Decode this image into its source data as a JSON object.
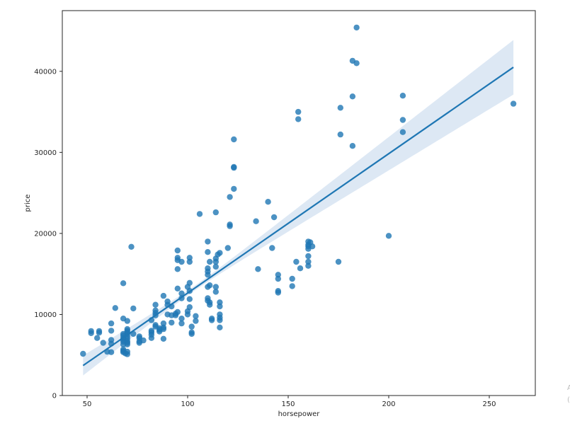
{
  "chart_data": {
    "type": "scatter",
    "title": "",
    "xlabel": "horsepower",
    "ylabel": "price",
    "xlim": [
      37.5,
      272.5
    ],
    "ylim": [
      0,
      47500
    ],
    "xticks": [
      50,
      100,
      150,
      200,
      250
    ],
    "yticks": [
      0,
      10000,
      20000,
      30000,
      40000
    ],
    "xtick_labels": [
      "50",
      "100",
      "150",
      "200",
      "250"
    ],
    "ytick_labels": [
      "0",
      "10000",
      "20000",
      "30000",
      "40000"
    ],
    "grid": false,
    "legend": null,
    "point_color": "#1f77b4",
    "line_color": "#1f77b4",
    "ci_band_color": "#c6d9ec",
    "regression": {
      "x_range": [
        48,
        262
      ],
      "y_at_start": 3700,
      "y_at_end": 40500,
      "ci_lower": [
        2700,
        36000
      ],
      "ci_upper": [
        4600,
        45000
      ]
    },
    "points": [
      [
        48,
        5150
      ],
      [
        52,
        7950
      ],
      [
        52,
        7700
      ],
      [
        55,
        7100
      ],
      [
        56,
        7950
      ],
      [
        56,
        7750
      ],
      [
        58,
        6500
      ],
      [
        60,
        5400
      ],
      [
        62,
        8900
      ],
      [
        62,
        8000
      ],
      [
        62,
        6850
      ],
      [
        62,
        6400
      ],
      [
        62,
        5350
      ],
      [
        64,
        10800
      ],
      [
        68,
        13850
      ],
      [
        68,
        9500
      ],
      [
        68,
        7600
      ],
      [
        68,
        7400
      ],
      [
        68,
        7100
      ],
      [
        68,
        6900
      ],
      [
        68,
        6650
      ],
      [
        68,
        6300
      ],
      [
        68,
        5700
      ],
      [
        68,
        5500
      ],
      [
        68,
        5350
      ],
      [
        69,
        5200
      ],
      [
        70,
        9200
      ],
      [
        70,
        8200
      ],
      [
        70,
        8000
      ],
      [
        70,
        7800
      ],
      [
        70,
        7600
      ],
      [
        70,
        7300
      ],
      [
        70,
        7000
      ],
      [
        70,
        6700
      ],
      [
        70,
        6500
      ],
      [
        70,
        6300
      ],
      [
        70,
        5100
      ],
      [
        70,
        5400
      ],
      [
        72,
        18350
      ],
      [
        73,
        10750
      ],
      [
        73,
        7600
      ],
      [
        76,
        7300
      ],
      [
        76,
        7100
      ],
      [
        76,
        6700
      ],
      [
        76,
        6500
      ],
      [
        78,
        6800
      ],
      [
        82,
        9300
      ],
      [
        82,
        8000
      ],
      [
        82,
        7800
      ],
      [
        82,
        7500
      ],
      [
        82,
        7100
      ],
      [
        84,
        11200
      ],
      [
        84,
        10500
      ],
      [
        84,
        10200
      ],
      [
        84,
        9900
      ],
      [
        84,
        8700
      ],
      [
        84,
        8500
      ],
      [
        86,
        8300
      ],
      [
        86,
        8100
      ],
      [
        86,
        7900
      ],
      [
        88,
        12300
      ],
      [
        88,
        8900
      ],
      [
        88,
        8400
      ],
      [
        88,
        8200
      ],
      [
        88,
        7000
      ],
      [
        90,
        11600
      ],
      [
        90,
        11200
      ],
      [
        90,
        10000
      ],
      [
        92,
        11000
      ],
      [
        92,
        9900
      ],
      [
        92,
        9000
      ],
      [
        94,
        10100
      ],
      [
        94,
        9900
      ],
      [
        95,
        17900
      ],
      [
        95,
        17000
      ],
      [
        95,
        16700
      ],
      [
        95,
        15600
      ],
      [
        95,
        13200
      ],
      [
        95,
        10300
      ],
      [
        97,
        12600
      ],
      [
        97,
        12000
      ],
      [
        97,
        9500
      ],
      [
        97,
        8900
      ],
      [
        97,
        16500
      ],
      [
        100,
        13400
      ],
      [
        100,
        10400
      ],
      [
        100,
        10000
      ],
      [
        101,
        17000
      ],
      [
        101,
        16500
      ],
      [
        101,
        13900
      ],
      [
        101,
        12900
      ],
      [
        101,
        11900
      ],
      [
        101,
        10900
      ],
      [
        102,
        8500
      ],
      [
        102,
        7800
      ],
      [
        102,
        7600
      ],
      [
        104,
        9800
      ],
      [
        104,
        9200
      ],
      [
        106,
        22400
      ],
      [
        110,
        19000
      ],
      [
        110,
        17700
      ],
      [
        110,
        15700
      ],
      [
        110,
        15300
      ],
      [
        110,
        14900
      ],
      [
        110,
        13400
      ],
      [
        110,
        12000
      ],
      [
        110,
        11700
      ],
      [
        111,
        16500
      ],
      [
        111,
        13600
      ],
      [
        111,
        11500
      ],
      [
        111,
        11200
      ],
      [
        112,
        9500
      ],
      [
        112,
        9300
      ],
      [
        114,
        22600
      ],
      [
        114,
        16900
      ],
      [
        114,
        16500
      ],
      [
        114,
        15900
      ],
      [
        114,
        13400
      ],
      [
        114,
        12800
      ],
      [
        115,
        17400
      ],
      [
        116,
        17600
      ],
      [
        116,
        11500
      ],
      [
        116,
        11000
      ],
      [
        116,
        10000
      ],
      [
        116,
        9600
      ],
      [
        116,
        9300
      ],
      [
        116,
        8400
      ],
      [
        120,
        18200
      ],
      [
        121,
        24500
      ],
      [
        121,
        21100
      ],
      [
        121,
        20900
      ],
      [
        123,
        31600
      ],
      [
        123,
        28200
      ],
      [
        123,
        28100
      ],
      [
        123,
        25500
      ],
      [
        134,
        21500
      ],
      [
        135,
        15600
      ],
      [
        140,
        23900
      ],
      [
        142,
        18200
      ],
      [
        143,
        22000
      ],
      [
        145,
        14900
      ],
      [
        145,
        14400
      ],
      [
        145,
        12900
      ],
      [
        145,
        12700
      ],
      [
        152,
        14400
      ],
      [
        152,
        13500
      ],
      [
        154,
        16500
      ],
      [
        155,
        35000
      ],
      [
        155,
        34100
      ],
      [
        156,
        15700
      ],
      [
        160,
        19000
      ],
      [
        160,
        18600
      ],
      [
        160,
        18400
      ],
      [
        160,
        18100
      ],
      [
        160,
        17200
      ],
      [
        160,
        16500
      ],
      [
        160,
        16000
      ],
      [
        161,
        18900
      ],
      [
        162,
        18400
      ],
      [
        175,
        16500
      ],
      [
        176,
        35500
      ],
      [
        176,
        32200
      ],
      [
        182,
        41300
      ],
      [
        182,
        36900
      ],
      [
        182,
        30800
      ],
      [
        184,
        45400
      ],
      [
        184,
        41000
      ],
      [
        200,
        19700
      ],
      [
        207,
        37000
      ],
      [
        207,
        34000
      ],
      [
        207,
        32500
      ],
      [
        262,
        36000
      ]
    ]
  },
  "axes": {
    "x_label": "horsepower",
    "y_label": "price",
    "x_ticks": [
      "50",
      "100",
      "150",
      "200",
      "250"
    ],
    "y_ticks": [
      "0",
      "10000",
      "20000",
      "30000",
      "40000"
    ]
  },
  "edge_artifacts": [
    "A",
    "("
  ]
}
